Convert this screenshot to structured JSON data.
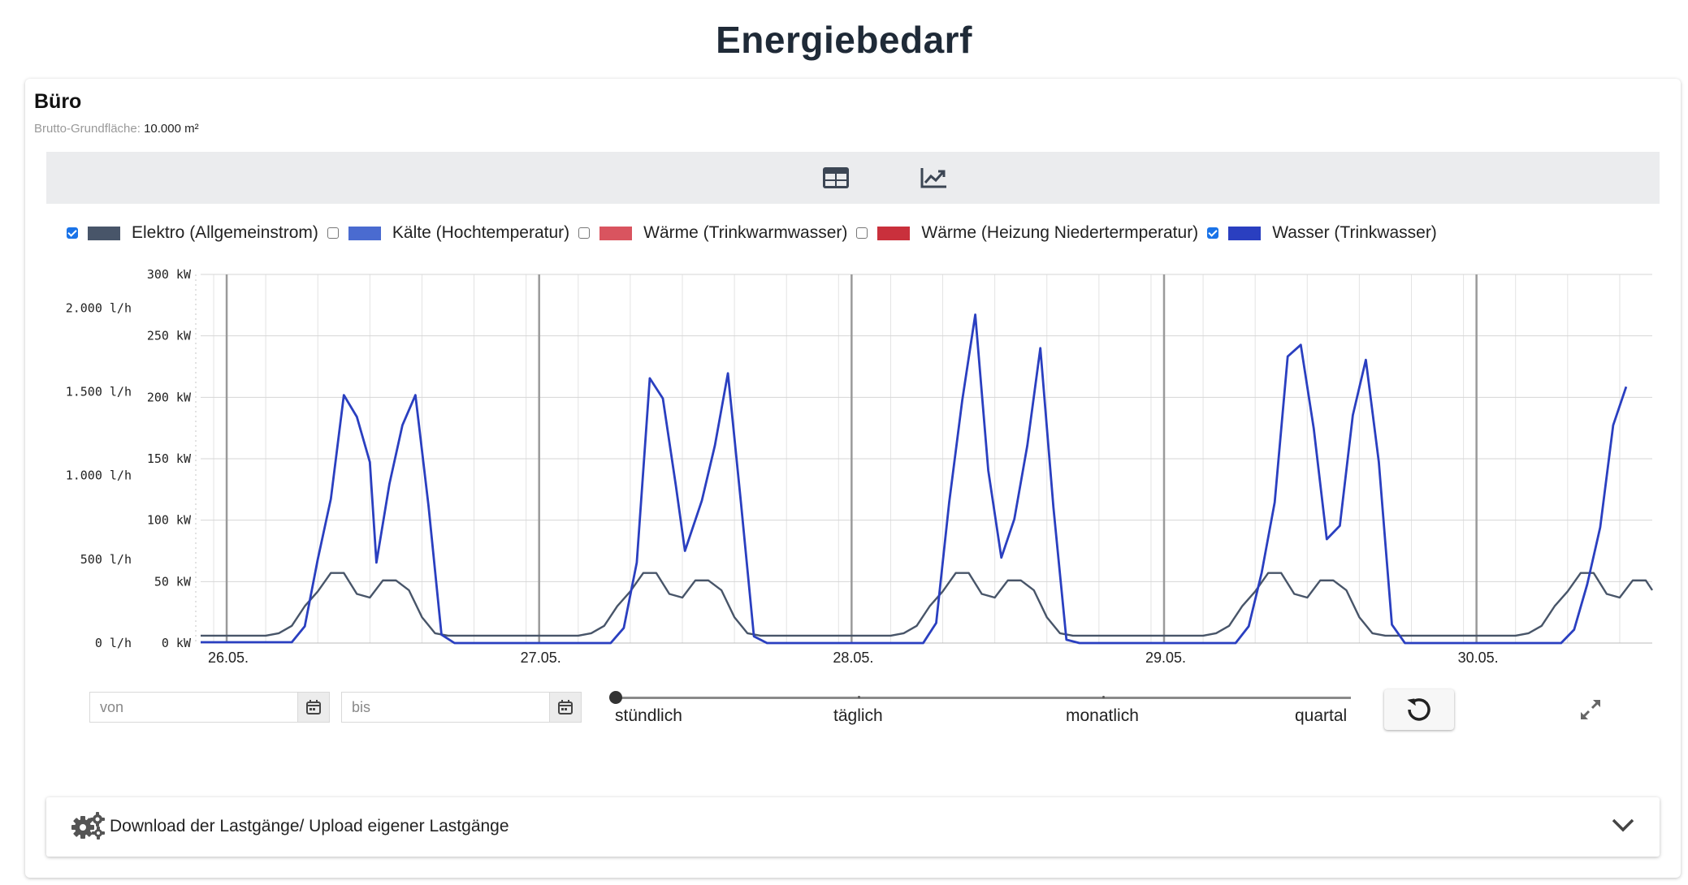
{
  "page": {
    "title": "Energiebedarf"
  },
  "card": {
    "title": "Büro",
    "area_label": "Brutto-Grundfläche:",
    "area_value": "10.000 m²"
  },
  "toolbar": {
    "table_icon": "table-icon",
    "chart_icon": "line-chart-icon"
  },
  "legend": [
    {
      "label": "Elektro (Allgemeinstrom)",
      "checked": true,
      "color": "#485569"
    },
    {
      "label": "Kälte (Hochtemperatur)",
      "checked": false,
      "color": "#4a6bd0"
    },
    {
      "label": "Wärme (Trinkwarmwasser)",
      "checked": false,
      "color": "#d9545f"
    },
    {
      "label": "Wärme (Heizung Niedertermperatur)",
      "checked": false,
      "color": "#c9303c"
    },
    {
      "label": "Wasser (Trinkwasser)",
      "checked": true,
      "color": "#2a3fc0"
    }
  ],
  "chart_data": {
    "type": "line",
    "x_tick_labels": [
      "26.05.",
      "27.05.",
      "28.05.",
      "29.05.",
      "30.05."
    ],
    "y_left_outer": {
      "unit": "l/h",
      "ticks": [
        "0 l/h",
        "500 l/h",
        "1.000 l/h",
        "1.500 l/h",
        "2.000 l/h"
      ],
      "range": [
        0,
        2200
      ]
    },
    "y_left_inner": {
      "unit": "kW",
      "ticks": [
        "0 kW",
        "50 kW",
        "100 kW",
        "150 kW",
        "200 kW",
        "250 kW",
        "300 kW"
      ],
      "range": [
        0,
        300
      ]
    },
    "x_range_hours": [
      -2,
      109.5
    ],
    "grid": true,
    "series": [
      {
        "name": "Elektro (Allgemeinstrom)",
        "axis": "kW",
        "color": "#485569",
        "points": [
          [
            -2,
            6
          ],
          [
            3,
            6
          ],
          [
            4,
            8
          ],
          [
            5,
            14
          ],
          [
            6,
            30
          ],
          [
            7,
            42
          ],
          [
            8,
            57
          ],
          [
            9,
            57
          ],
          [
            10,
            40
          ],
          [
            11,
            37
          ],
          [
            12,
            51
          ],
          [
            13,
            51
          ],
          [
            14,
            43
          ],
          [
            15,
            21
          ],
          [
            16,
            8
          ],
          [
            17,
            6
          ],
          [
            22,
            6
          ],
          [
            27,
            6
          ],
          [
            28,
            8
          ],
          [
            29,
            14
          ],
          [
            30,
            30
          ],
          [
            31,
            42
          ],
          [
            32,
            57
          ],
          [
            33,
            57
          ],
          [
            34,
            40
          ],
          [
            35,
            37
          ],
          [
            36,
            51
          ],
          [
            37,
            51
          ],
          [
            38,
            43
          ],
          [
            39,
            21
          ],
          [
            40,
            8
          ],
          [
            41,
            6
          ],
          [
            46,
            6
          ],
          [
            51,
            6
          ],
          [
            52,
            8
          ],
          [
            53,
            14
          ],
          [
            54,
            30
          ],
          [
            55,
            42
          ],
          [
            56,
            57
          ],
          [
            57,
            57
          ],
          [
            58,
            40
          ],
          [
            59,
            37
          ],
          [
            60,
            51
          ],
          [
            61,
            51
          ],
          [
            62,
            43
          ],
          [
            63,
            21
          ],
          [
            64,
            8
          ],
          [
            65,
            6
          ],
          [
            70,
            6
          ],
          [
            75,
            6
          ],
          [
            76,
            8
          ],
          [
            77,
            14
          ],
          [
            78,
            30
          ],
          [
            79,
            42
          ],
          [
            80,
            57
          ],
          [
            81,
            57
          ],
          [
            82,
            40
          ],
          [
            83,
            37
          ],
          [
            84,
            51
          ],
          [
            85,
            51
          ],
          [
            86,
            43
          ],
          [
            87,
            21
          ],
          [
            88,
            8
          ],
          [
            89,
            6
          ],
          [
            94,
            6
          ],
          [
            99,
            6
          ],
          [
            100,
            8
          ],
          [
            101,
            14
          ],
          [
            102,
            30
          ],
          [
            103,
            42
          ],
          [
            104,
            57
          ],
          [
            105,
            57
          ],
          [
            106,
            40
          ],
          [
            107,
            37
          ],
          [
            108,
            51
          ],
          [
            109,
            51
          ],
          [
            109.5,
            43
          ]
        ]
      },
      {
        "name": "Wasser (Trinkwasser)",
        "axis": "l/h",
        "color": "#2a3fc0",
        "points": [
          [
            -2,
            5
          ],
          [
            5,
            5
          ],
          [
            6,
            100
          ],
          [
            7,
            500
          ],
          [
            8,
            860
          ],
          [
            9,
            1480
          ],
          [
            10,
            1350
          ],
          [
            11,
            1080
          ],
          [
            11.5,
            480
          ],
          [
            12.5,
            950
          ],
          [
            13.5,
            1300
          ],
          [
            14.5,
            1480
          ],
          [
            15.5,
            820
          ],
          [
            16.5,
            50
          ],
          [
            17.5,
            0
          ],
          [
            29.5,
            0
          ],
          [
            30.5,
            90
          ],
          [
            31.5,
            480
          ],
          [
            32.5,
            1580
          ],
          [
            33.5,
            1460
          ],
          [
            34.5,
            940
          ],
          [
            35.2,
            550
          ],
          [
            36.5,
            850
          ],
          [
            37.5,
            1180
          ],
          [
            38.5,
            1610
          ],
          [
            39.5,
            840
          ],
          [
            40.5,
            40
          ],
          [
            41.5,
            0
          ],
          [
            53.5,
            0
          ],
          [
            54.5,
            120
          ],
          [
            55.5,
            840
          ],
          [
            56.5,
            1450
          ],
          [
            57.5,
            1960
          ],
          [
            58.5,
            1030
          ],
          [
            59.5,
            510
          ],
          [
            60.5,
            740
          ],
          [
            61.5,
            1180
          ],
          [
            62.5,
            1760
          ],
          [
            63.5,
            810
          ],
          [
            64.5,
            20
          ],
          [
            65.5,
            0
          ],
          [
            77.5,
            0
          ],
          [
            78.5,
            100
          ],
          [
            79.5,
            420
          ],
          [
            80.5,
            840
          ],
          [
            81.5,
            1710
          ],
          [
            82.5,
            1780
          ],
          [
            83.5,
            1280
          ],
          [
            84.5,
            620
          ],
          [
            85.5,
            700
          ],
          [
            86.5,
            1360
          ],
          [
            87.5,
            1690
          ],
          [
            88.5,
            1080
          ],
          [
            89.5,
            110
          ],
          [
            90.5,
            0
          ],
          [
            102.5,
            0
          ],
          [
            103.5,
            80
          ],
          [
            104.5,
            350
          ],
          [
            105.5,
            690
          ],
          [
            106.5,
            1300
          ],
          [
            107.5,
            1530
          ]
        ]
      }
    ]
  },
  "controls": {
    "from_placeholder": "von",
    "to_placeholder": "bis",
    "slider_labels": [
      "stündlich",
      "täglich",
      "monatlich",
      "quartal"
    ],
    "slider_value": "stündlich",
    "reset_icon": "reset-icon",
    "expand_icon": "expand-icon"
  },
  "accordion": {
    "icon": "gears-icon",
    "label": "Download der Lastgänge/ Upload eigener Lastgänge",
    "chevron": "chevron-down-icon"
  }
}
